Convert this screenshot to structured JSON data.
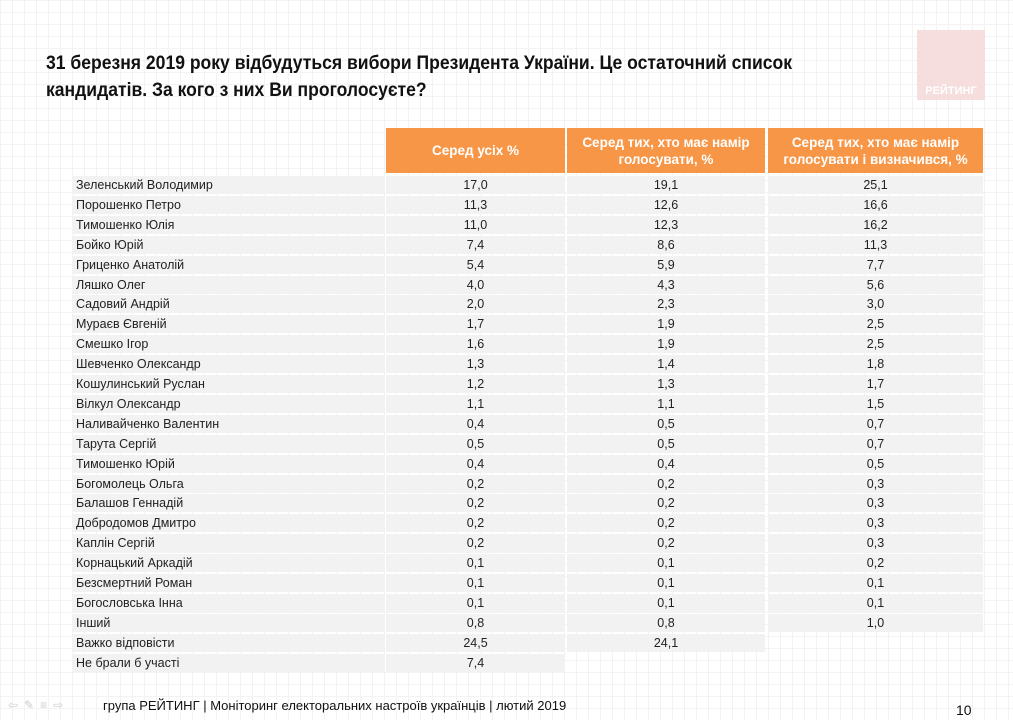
{
  "title": "31 березня 2019 року відбудуться вибори Президента України. Це остаточний список кандидатів. За кого з них Ви проголосуєте?",
  "logo_text": "РЕЙТИНГ",
  "accent_color": "#f79646",
  "columns": [
    "Серед усіх %",
    "Серед тих, хто має намір голосувати, %",
    "Серед тих, хто має намір голосувати і визначився, %"
  ],
  "rows": [
    [
      "Зеленський Володимир",
      "17,0",
      "19,1",
      "25,1"
    ],
    [
      "Порошенко Петро",
      "11,3",
      "12,6",
      "16,6"
    ],
    [
      "Тимошенко Юлія",
      "11,0",
      "12,3",
      "16,2"
    ],
    [
      "Бойко Юрій",
      "7,4",
      "8,6",
      "11,3"
    ],
    [
      "Гриценко Анатолій",
      "5,4",
      "5,9",
      "7,7"
    ],
    [
      "Ляшко Олег",
      "4,0",
      "4,3",
      "5,6"
    ],
    [
      "Садовий Андрій",
      "2,0",
      "2,3",
      "3,0"
    ],
    [
      "Мураєв Євгеній",
      "1,7",
      "1,9",
      "2,5"
    ],
    [
      "Смешко Ігор",
      "1,6",
      "1,9",
      "2,5"
    ],
    [
      "Шевченко Олександр",
      "1,3",
      "1,4",
      "1,8"
    ],
    [
      "Кошулинський Руслан",
      "1,2",
      "1,3",
      "1,7"
    ],
    [
      "Вілкул Олександр",
      "1,1",
      "1,1",
      "1,5"
    ],
    [
      "Наливайченко Валентин",
      "0,4",
      "0,5",
      "0,7"
    ],
    [
      "Тарута Сергій",
      "0,5",
      "0,5",
      "0,7"
    ],
    [
      "Тимошенко Юрій",
      "0,4",
      "0,4",
      "0,5"
    ],
    [
      "Богомолець Ольга",
      "0,2",
      "0,2",
      "0,3"
    ],
    [
      "Балашов Геннадій",
      "0,2",
      "0,2",
      "0,3"
    ],
    [
      "Добродомов Дмитро",
      "0,2",
      "0,2",
      "0,3"
    ],
    [
      "Каплін Сергій",
      "0,2",
      "0,2",
      "0,3"
    ],
    [
      "Корнацький Аркадій",
      "0,1",
      "0,1",
      "0,2"
    ],
    [
      "Безсмертний Роман",
      "0,1",
      "0,1",
      "0,1"
    ],
    [
      "Богословська Інна",
      "0,1",
      "0,1",
      "0,1"
    ],
    [
      "Інший",
      "0,8",
      "0,8",
      "1,0"
    ],
    [
      "Важко відповісти",
      "24,5",
      "24,1",
      null
    ],
    [
      "Не брали б участі",
      "7,4",
      null,
      null
    ]
  ],
  "footer": "група РЕЙТИНГ |  Моніторинг електоральних настроїв українців | лютий  2019",
  "page_number": "10"
}
